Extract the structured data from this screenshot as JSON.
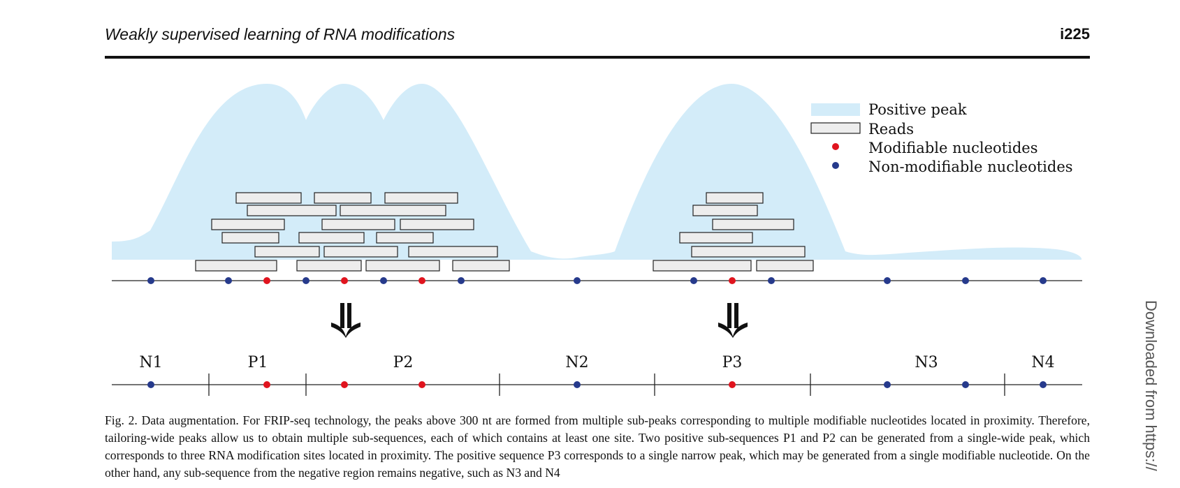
{
  "header": {
    "journal_title": "Weakly supervised learning of RNA modifications",
    "page_number": "i225"
  },
  "legend": {
    "positive_peak": "Positive peak",
    "reads": "Reads",
    "modifiable": "Modifiable nucleotides",
    "non_modifiable": "Non-modifiable nucleotides"
  },
  "colors": {
    "peak": "#d3ecf9",
    "read_fill": "#ededed",
    "modifiable": "#e0141e",
    "non_modifiable": "#263a8c"
  },
  "segments": [
    "N1",
    "P1",
    "P2",
    "N2",
    "P3",
    "N3",
    "N4"
  ],
  "caption": {
    "label": "Fig. 2.",
    "text": "Data augmentation. For FRIP-seq technology, the peaks above 300 nt are formed from multiple sub-peaks corresponding to multiple modifiable nucleotides located in proximity. Therefore, tailoring-wide peaks allow us to obtain multiple sub-sequences, each of which contains at least one site. Two positive sub-sequences P1 and P2 can be generated from a single-wide peak, which corresponds to three RNA modification sites located in proximity. The positive sequence P3 corresponds to a single narrow peak, which may be generated from a single modifiable nucleotide. On the other hand, any sub-sequence from the negative region remains negative, such as N3 and N4"
  },
  "side_watermark": "Downloaded from https://"
}
